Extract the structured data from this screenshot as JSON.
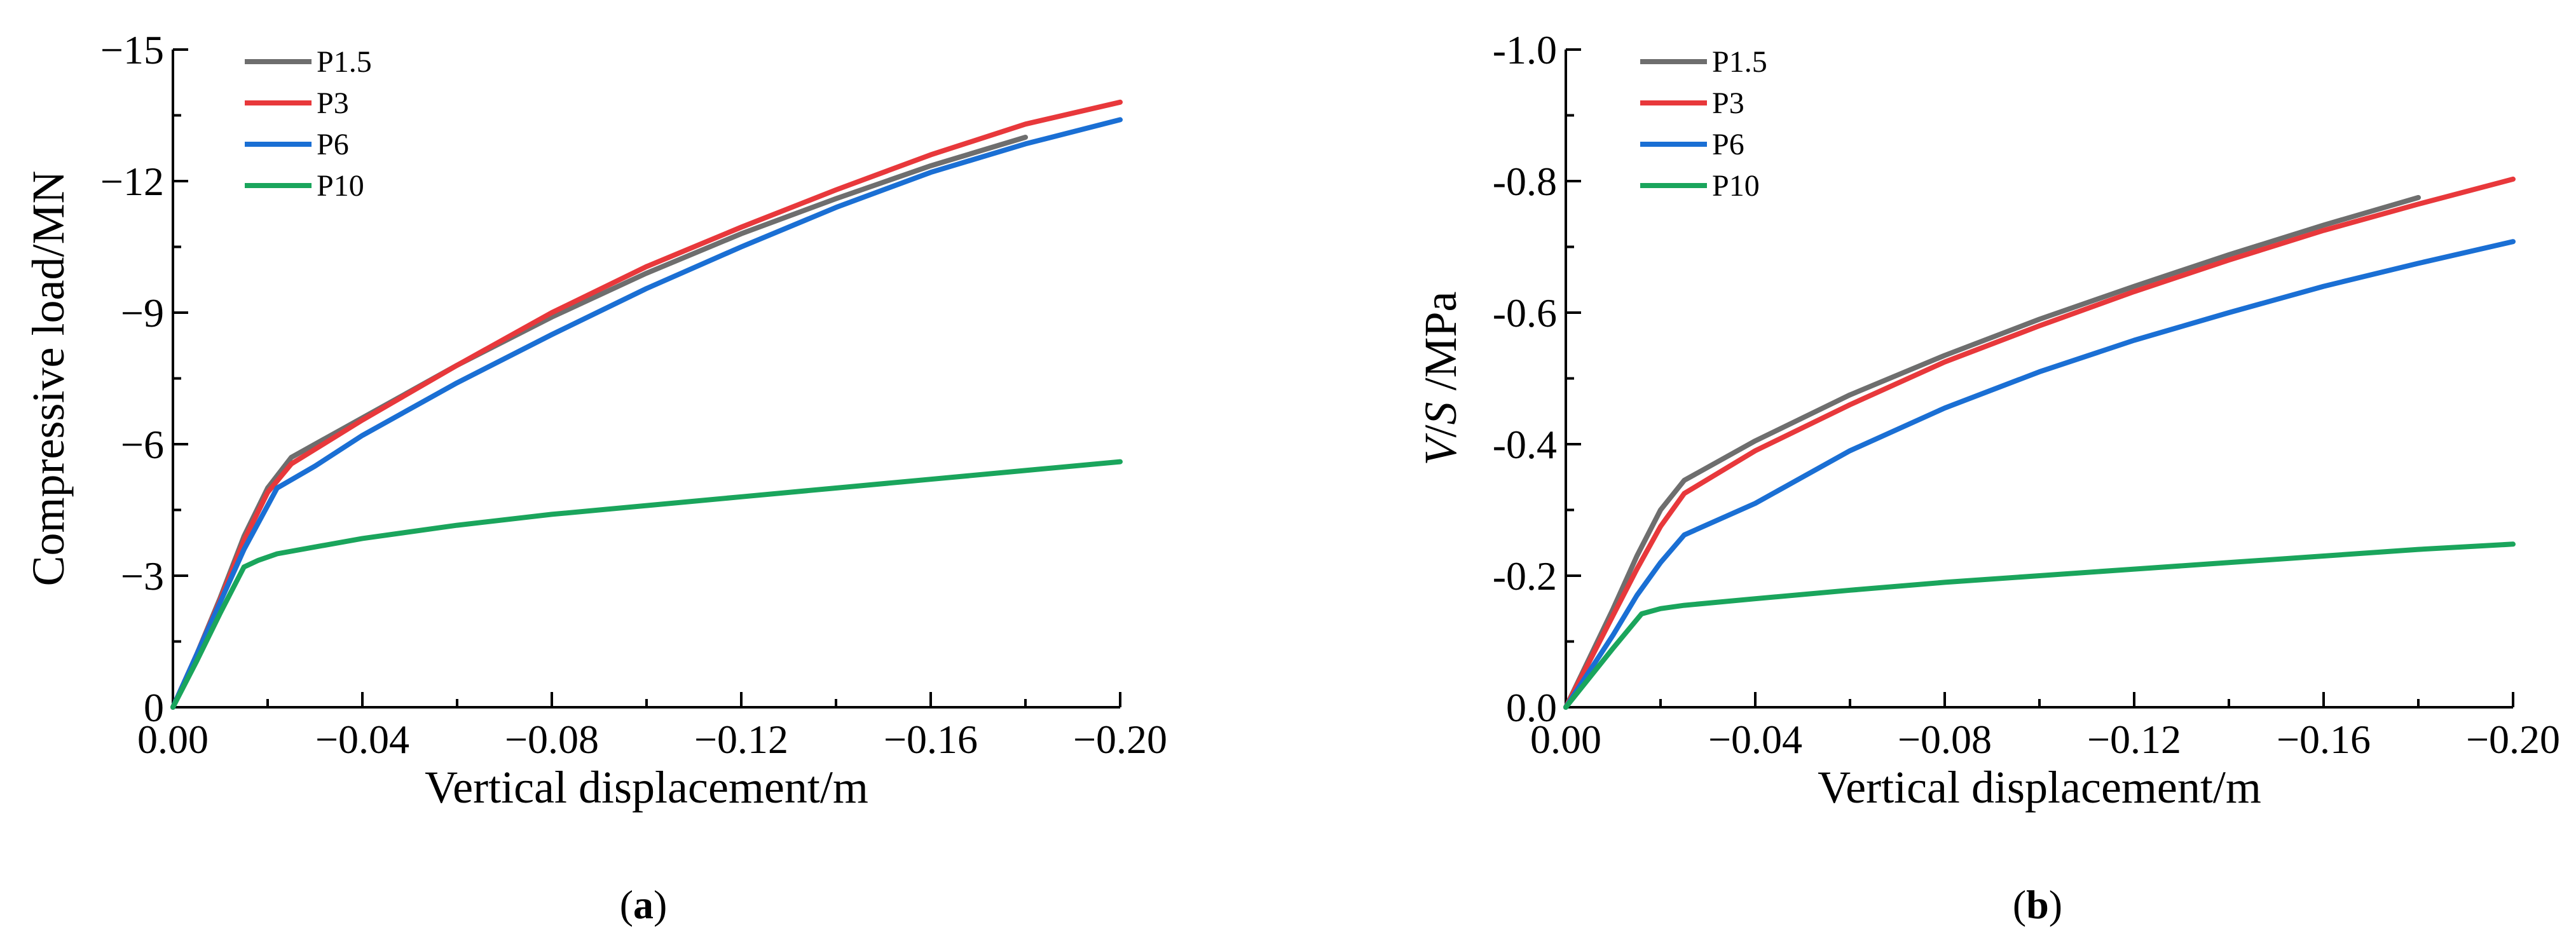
{
  "chart_data": [
    {
      "type": "line",
      "panel_label": "(a)",
      "panel_letter": "a",
      "xlabel": "Vertical displacement/m",
      "ylabel": "Compressive load/MN",
      "xlim": [
        0,
        -0.2
      ],
      "ylim": [
        0,
        -15
      ],
      "xticks": [
        0,
        -0.04,
        -0.08,
        -0.12,
        -0.16,
        -0.2
      ],
      "xtick_labels": [
        "0.00",
        "−0.04",
        "−0.08",
        "−0.12",
        "−0.16",
        "−0.20"
      ],
      "yticks": [
        0,
        -3,
        -6,
        -9,
        -12,
        -15
      ],
      "ytick_labels": [
        "0",
        "−3",
        "−6",
        "−9",
        "−12",
        "−15"
      ],
      "legend_position": "top-left",
      "series": [
        {
          "name": "P1.5",
          "color": "#6e6e6e",
          "x": [
            0,
            -0.005,
            -0.01,
            -0.015,
            -0.02,
            -0.025,
            -0.04,
            -0.06,
            -0.08,
            -0.1,
            -0.12,
            -0.14,
            -0.16,
            -0.18
          ],
          "y": [
            0,
            -1.2,
            -2.5,
            -3.9,
            -5.0,
            -5.7,
            -6.6,
            -7.8,
            -8.9,
            -9.9,
            -10.8,
            -11.6,
            -12.35,
            -13.0
          ]
        },
        {
          "name": "P3",
          "color": "#e8383b",
          "x": [
            0,
            -0.005,
            -0.01,
            -0.015,
            -0.02,
            -0.025,
            -0.04,
            -0.06,
            -0.08,
            -0.1,
            -0.12,
            -0.14,
            -0.16,
            -0.18,
            -0.2
          ],
          "y": [
            0,
            -1.2,
            -2.45,
            -3.8,
            -4.9,
            -5.55,
            -6.55,
            -7.8,
            -9.0,
            -10.05,
            -10.95,
            -11.8,
            -12.6,
            -13.3,
            -13.8
          ]
        },
        {
          "name": "P6",
          "color": "#1a6fd4",
          "x": [
            0,
            -0.005,
            -0.01,
            -0.015,
            -0.022,
            -0.03,
            -0.04,
            -0.06,
            -0.08,
            -0.1,
            -0.12,
            -0.14,
            -0.16,
            -0.18,
            -0.2
          ],
          "y": [
            0,
            -1.2,
            -2.4,
            -3.6,
            -5.0,
            -5.5,
            -6.2,
            -7.4,
            -8.5,
            -9.55,
            -10.5,
            -11.4,
            -12.2,
            -12.85,
            -13.4
          ]
        },
        {
          "name": "P10",
          "color": "#1aa55c",
          "x": [
            0,
            -0.005,
            -0.01,
            -0.015,
            -0.018,
            -0.022,
            -0.04,
            -0.06,
            -0.08,
            -0.1,
            -0.12,
            -0.14,
            -0.16,
            -0.18,
            -0.2
          ],
          "y": [
            0,
            -1.05,
            -2.15,
            -3.2,
            -3.35,
            -3.5,
            -3.85,
            -4.15,
            -4.4,
            -4.6,
            -4.8,
            -5.0,
            -5.2,
            -5.4,
            -5.6
          ]
        }
      ]
    },
    {
      "type": "line",
      "panel_label": "(b)",
      "panel_letter": "b",
      "xlabel": "Vertical displacement/m",
      "ylabel_var1": "V",
      "ylabel_var2": "S",
      "ylabel_slash": "/",
      "ylabel_unit": " /MPa",
      "xlim": [
        0,
        -0.2
      ],
      "ylim": [
        0,
        -1.0
      ],
      "xticks": [
        0,
        -0.04,
        -0.08,
        -0.12,
        -0.16,
        -0.2
      ],
      "xtick_labels": [
        "0.00",
        "−0.04",
        "−0.08",
        "−0.12",
        "−0.16",
        "−0.20"
      ],
      "yticks": [
        0,
        -0.2,
        -0.4,
        -0.6,
        -0.8,
        -1.0
      ],
      "ytick_labels": [
        "0.0",
        "-0.2",
        "-0.4",
        "-0.6",
        "-0.8",
        "-1.0"
      ],
      "legend_position": "top-left",
      "series": [
        {
          "name": "P1.5",
          "color": "#6e6e6e",
          "x": [
            0,
            -0.005,
            -0.01,
            -0.015,
            -0.02,
            -0.025,
            -0.04,
            -0.06,
            -0.08,
            -0.1,
            -0.12,
            -0.14,
            -0.16,
            -0.18
          ],
          "y": [
            0,
            -0.075,
            -0.15,
            -0.23,
            -0.3,
            -0.345,
            -0.405,
            -0.475,
            -0.535,
            -0.59,
            -0.64,
            -0.688,
            -0.733,
            -0.775
          ]
        },
        {
          "name": "P3",
          "color": "#e8383b",
          "x": [
            0,
            -0.005,
            -0.01,
            -0.015,
            -0.02,
            -0.025,
            -0.04,
            -0.06,
            -0.08,
            -0.1,
            -0.12,
            -0.14,
            -0.16,
            -0.18,
            -0.2
          ],
          "y": [
            0,
            -0.07,
            -0.14,
            -0.21,
            -0.275,
            -0.325,
            -0.39,
            -0.46,
            -0.525,
            -0.58,
            -0.632,
            -0.68,
            -0.725,
            -0.765,
            -0.803
          ]
        },
        {
          "name": "P6",
          "color": "#1a6fd4",
          "x": [
            0,
            -0.005,
            -0.01,
            -0.015,
            -0.02,
            -0.025,
            -0.04,
            -0.06,
            -0.08,
            -0.1,
            -0.12,
            -0.14,
            -0.16,
            -0.18,
            -0.2
          ],
          "y": [
            0,
            -0.055,
            -0.11,
            -0.17,
            -0.22,
            -0.262,
            -0.31,
            -0.39,
            -0.455,
            -0.51,
            -0.558,
            -0.6,
            -0.64,
            -0.675,
            -0.708
          ]
        },
        {
          "name": "P10",
          "color": "#1aa55c",
          "x": [
            0,
            -0.005,
            -0.01,
            -0.016,
            -0.02,
            -0.025,
            -0.04,
            -0.06,
            -0.08,
            -0.1,
            -0.12,
            -0.14,
            -0.16,
            -0.18,
            -0.2
          ],
          "y": [
            0,
            -0.045,
            -0.09,
            -0.142,
            -0.15,
            -0.155,
            -0.165,
            -0.178,
            -0.19,
            -0.2,
            -0.21,
            -0.22,
            -0.23,
            -0.24,
            -0.248
          ]
        }
      ]
    }
  ]
}
